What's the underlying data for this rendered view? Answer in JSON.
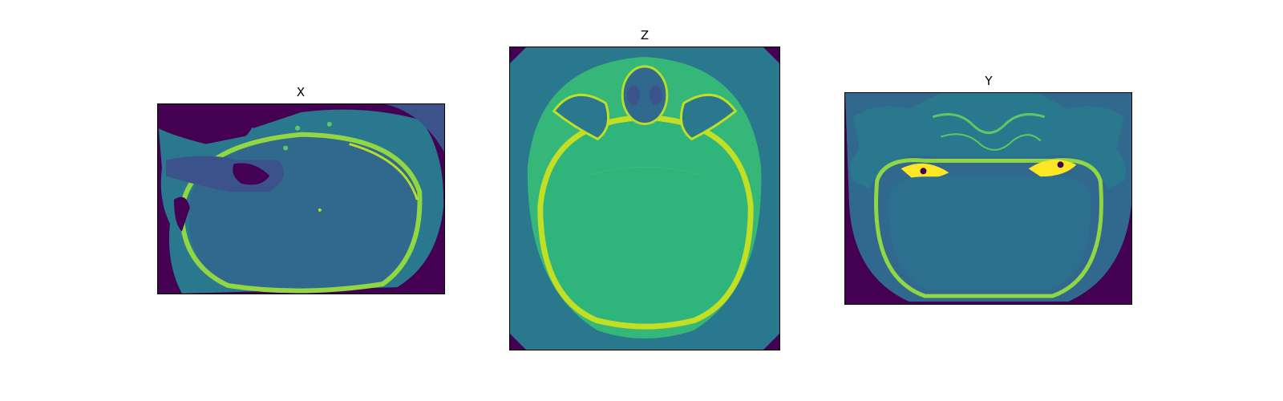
{
  "panels": {
    "x": {
      "title": "X"
    },
    "z": {
      "title": "Z"
    },
    "y": {
      "title": "Y"
    }
  },
  "colors": {
    "background": "#440154",
    "soft_tissue": "#2a788e",
    "brain": "#31688e",
    "brain_z": "#35b779",
    "bone": "#fde725",
    "bone_mid": "#90d743"
  }
}
